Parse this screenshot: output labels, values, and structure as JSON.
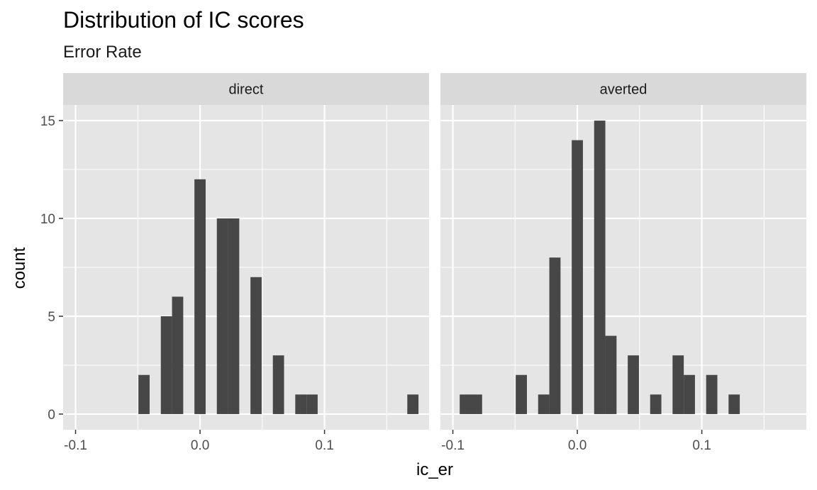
{
  "chart_data": {
    "type": "bar",
    "title": "Distribution of IC scores",
    "subtitle": "Error Rate",
    "xlabel": "ic_er",
    "ylabel": "count",
    "xlim": [
      -0.11,
      0.184
    ],
    "ylim": [
      -0.8,
      15.8
    ],
    "x_ticks": [
      -0.1,
      0.0,
      0.1
    ],
    "x_tick_labels": [
      "-0.1",
      "0.0",
      "0.1"
    ],
    "y_ticks": [
      0,
      5,
      10,
      15
    ],
    "y_tick_labels": [
      "0",
      "5",
      "10",
      "15"
    ],
    "bin_width": 0.009,
    "grid": true,
    "bar_color": "#474747",
    "panel_background": "#e5e5e5",
    "strip_background": "#d9d9d9",
    "gridline_color": "#ffffff",
    "panels": [
      {
        "label": "direct",
        "bins": [
          {
            "x": -0.045,
            "count": 2
          },
          {
            "x": -0.027,
            "count": 5
          },
          {
            "x": -0.018,
            "count": 6
          },
          {
            "x": 0.0,
            "count": 12
          },
          {
            "x": 0.018,
            "count": 10
          },
          {
            "x": 0.027,
            "count": 10
          },
          {
            "x": 0.045,
            "count": 7
          },
          {
            "x": 0.063,
            "count": 3
          },
          {
            "x": 0.081,
            "count": 1
          },
          {
            "x": 0.09,
            "count": 1
          },
          {
            "x": 0.171,
            "count": 1
          }
        ]
      },
      {
        "label": "averted",
        "bins": [
          {
            "x": -0.09,
            "count": 1
          },
          {
            "x": -0.081,
            "count": 1
          },
          {
            "x": -0.045,
            "count": 2
          },
          {
            "x": -0.027,
            "count": 1
          },
          {
            "x": -0.018,
            "count": 8
          },
          {
            "x": 0.0,
            "count": 14
          },
          {
            "x": 0.018,
            "count": 15
          },
          {
            "x": 0.027,
            "count": 4
          },
          {
            "x": 0.045,
            "count": 3
          },
          {
            "x": 0.063,
            "count": 1
          },
          {
            "x": 0.081,
            "count": 3
          },
          {
            "x": 0.09,
            "count": 2
          },
          {
            "x": 0.108,
            "count": 2
          },
          {
            "x": 0.126,
            "count": 1
          }
        ]
      }
    ]
  }
}
